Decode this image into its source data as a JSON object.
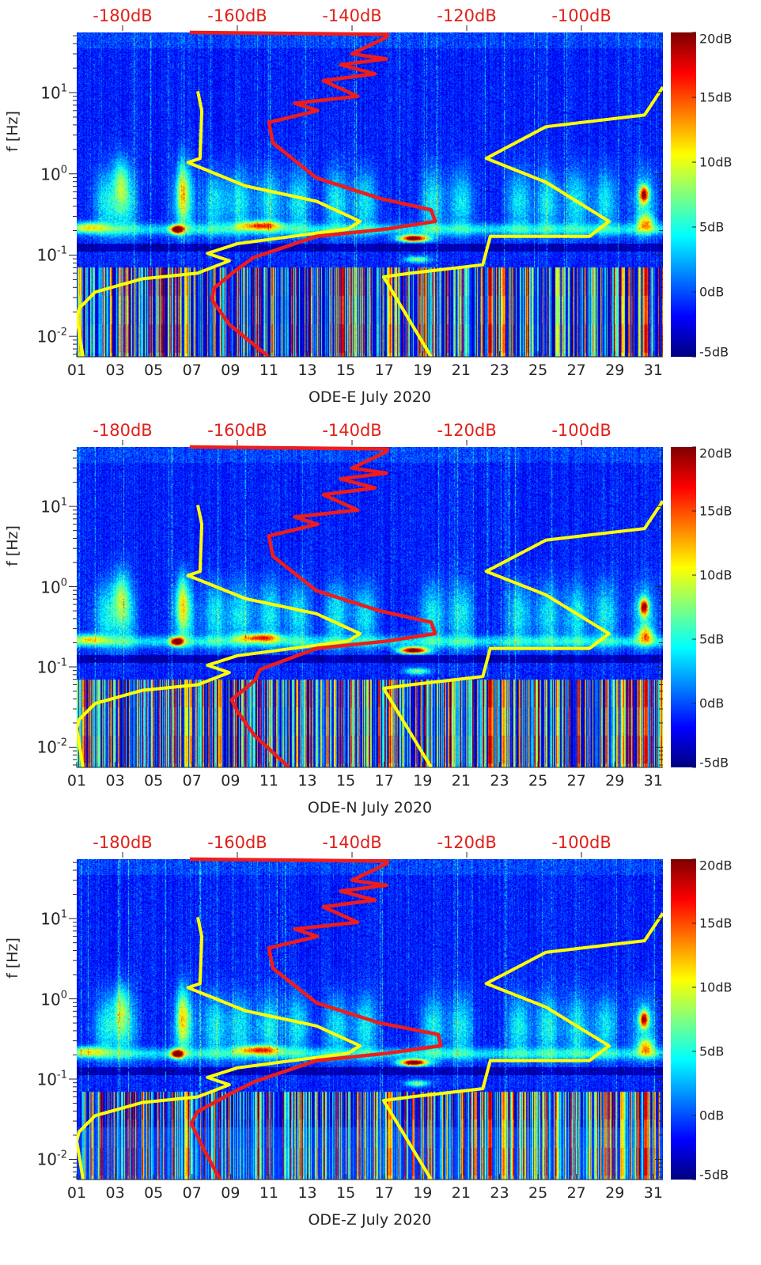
{
  "chart_data": {
    "type": "heatmap",
    "xlim_days": [
      1,
      31.5
    ],
    "ylim_hz": [
      0.0056,
      55
    ],
    "yscale": "log",
    "ylabel": "f [Hz]",
    "x_ticks": [
      1,
      3,
      5,
      7,
      9,
      11,
      13,
      15,
      17,
      19,
      21,
      23,
      25,
      27,
      29,
      31
    ],
    "x_tick_labels": [
      "01",
      "03",
      "05",
      "07",
      "09",
      "11",
      "13",
      "15",
      "17",
      "19",
      "21",
      "23",
      "25",
      "27",
      "29",
      "31"
    ],
    "y_ticks": [
      {
        "value": 10,
        "base": "10",
        "exp": "1"
      },
      {
        "value": 1,
        "base": "10",
        "exp": "0"
      },
      {
        "value": 0.1,
        "base": "10",
        "exp": "-1"
      },
      {
        "value": 0.01,
        "base": "10",
        "exp": "-2"
      }
    ],
    "top_axis": {
      "range_db": [
        -188,
        -85.8
      ],
      "ticks": [
        -180,
        -160,
        -140,
        -120,
        -100
      ],
      "tick_labels": [
        "-180dB",
        "-160dB",
        "-140dB",
        "-120dB",
        "-100dB"
      ],
      "color": "#e0201a"
    },
    "colorbar": {
      "colormap": "jet",
      "range_db": [
        -5,
        20
      ],
      "ticks": [
        -5,
        0,
        5,
        10,
        15,
        20
      ],
      "tick_labels": [
        "-5dB",
        "0dB",
        "5dB",
        "10dB",
        "15dB",
        "20dB"
      ]
    },
    "yellow_curves": [
      {
        "color": "#ffff00",
        "points": [
          [
            -166.9,
            10.4
          ],
          [
            -166.2,
            6
          ],
          [
            -166.5,
            1.55
          ],
          [
            -168.6,
            1.38
          ],
          [
            -158.6,
            0.71
          ],
          [
            -146.2,
            0.46
          ],
          [
            -138.6,
            0.26
          ],
          [
            -140.7,
            0.21
          ],
          [
            -160,
            0.138
          ],
          [
            -165.2,
            0.105
          ],
          [
            -161.4,
            0.085
          ],
          [
            -166.9,
            0.06
          ],
          [
            -176.6,
            0.051
          ],
          [
            -184.8,
            0.035
          ],
          [
            -187.6,
            0.022
          ],
          [
            -188,
            0.017
          ],
          [
            -186.9,
            0.0056
          ]
        ]
      },
      {
        "color": "#ffff00",
        "points": [
          [
            -85.8,
            11.7
          ],
          [
            -89,
            5.3
          ],
          [
            -106.2,
            3.8
          ],
          [
            -116.6,
            1.55
          ],
          [
            -106.2,
            0.79
          ],
          [
            -95.2,
            0.26
          ],
          [
            -98.6,
            0.17
          ],
          [
            -115.9,
            0.17
          ],
          [
            -117.2,
            0.076
          ],
          [
            -129.7,
            0.06
          ],
          [
            -134.5,
            0.054
          ],
          [
            -126.2,
            0.0056
          ]
        ]
      }
    ],
    "panels": [
      {
        "xlabel": "ODE-E July 2020",
        "red_curve": {
          "color": "#ee1c1c",
          "points": [
            [
              -168.3,
              55
            ],
            [
              -133.8,
              52
            ],
            [
              -134,
              48
            ],
            [
              -140,
              30
            ],
            [
              -134,
              26
            ],
            [
              -142,
              22
            ],
            [
              -136,
              17
            ],
            [
              -145,
              14
            ],
            [
              -139,
              9
            ],
            [
              -150,
              7.4
            ],
            [
              -146,
              6
            ],
            [
              -154.5,
              4.3
            ],
            [
              -153.8,
              2.4
            ],
            [
              -146.2,
              0.89
            ],
            [
              -135.2,
              0.5
            ],
            [
              -126.2,
              0.36
            ],
            [
              -125.5,
              0.26
            ],
            [
              -133.8,
              0.21
            ],
            [
              -146.2,
              0.17
            ],
            [
              -157.2,
              0.093
            ],
            [
              -160,
              0.067
            ],
            [
              -164.1,
              0.039
            ],
            [
              -164.4,
              0.028
            ],
            [
              -161.4,
              0.014
            ],
            [
              -154.5,
              0.0056
            ]
          ]
        }
      },
      {
        "xlabel": "ODE-N July 2020",
        "red_curve": {
          "color": "#ee1c1c",
          "points": [
            [
              -168.3,
              55
            ],
            [
              -133.8,
              52
            ],
            [
              -134,
              48
            ],
            [
              -140,
              30
            ],
            [
              -134,
              26
            ],
            [
              -142,
              22
            ],
            [
              -136,
              17
            ],
            [
              -145,
              14
            ],
            [
              -139,
              9
            ],
            [
              -150,
              7.4
            ],
            [
              -146,
              6
            ],
            [
              -154.5,
              4.3
            ],
            [
              -153.8,
              2.4
            ],
            [
              -146.2,
              0.89
            ],
            [
              -135.2,
              0.5
            ],
            [
              -126.2,
              0.36
            ],
            [
              -125.5,
              0.26
            ],
            [
              -133.8,
              0.21
            ],
            [
              -146.2,
              0.17
            ],
            [
              -156,
              0.093
            ],
            [
              -157,
              0.067
            ],
            [
              -161,
              0.039
            ],
            [
              -160,
              0.028
            ],
            [
              -157,
              0.014
            ],
            [
              -151,
              0.0056
            ]
          ]
        }
      },
      {
        "xlabel": "ODE-Z July 2020",
        "red_curve": {
          "color": "#ee1c1c",
          "points": [
            [
              -168.3,
              55
            ],
            [
              -133.8,
              52
            ],
            [
              -134,
              48
            ],
            [
              -140,
              30
            ],
            [
              -134,
              26
            ],
            [
              -142,
              22
            ],
            [
              -136,
              17
            ],
            [
              -145,
              14
            ],
            [
              -139,
              9
            ],
            [
              -150,
              7.4
            ],
            [
              -146,
              6
            ],
            [
              -154.5,
              4.3
            ],
            [
              -153.8,
              2.4
            ],
            [
              -146.2,
              0.89
            ],
            [
              -135.2,
              0.5
            ],
            [
              -125,
              0.36
            ],
            [
              -124.5,
              0.26
            ],
            [
              -133.8,
              0.21
            ],
            [
              -146.2,
              0.17
            ],
            [
              -157,
              0.093
            ],
            [
              -161,
              0.067
            ],
            [
              -167,
              0.039
            ],
            [
              -168,
              0.028
            ],
            [
              -166,
              0.014
            ],
            [
              -163,
              0.0056
            ]
          ]
        }
      }
    ]
  }
}
